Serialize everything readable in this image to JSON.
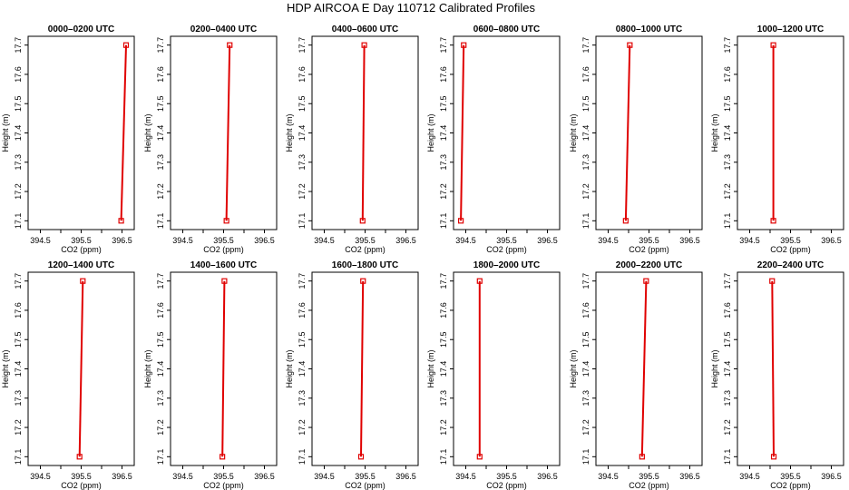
{
  "figure": {
    "title": "HDP AIRCOA E  Day 110712  Calibrated Profiles"
  },
  "colors": {
    "series": "#e00000",
    "axis": "#000000",
    "background": "#ffffff"
  },
  "chart_data": [
    {
      "type": "line",
      "title": "0000–0200 UTC",
      "xlabel": "CO2 (ppm)",
      "ylabel": "Height (m)",
      "xlim": [
        394.2,
        396.8
      ],
      "ylim": [
        17.07,
        17.73
      ],
      "xticks": [
        394.5,
        395.5,
        396.5
      ],
      "xtick_labels": [
        "394.5",
        "395.5",
        "396.5"
      ],
      "yticks": [
        17.1,
        17.2,
        17.3,
        17.4,
        17.5,
        17.6,
        17.7
      ],
      "ytick_labels": [
        "17.1",
        "17.2",
        "17.3",
        "17.4",
        "17.5",
        "17.6",
        "17.7"
      ],
      "series": [
        {
          "x": [
            396.48,
            396.6
          ],
          "y": [
            17.1,
            17.7
          ]
        }
      ]
    },
    {
      "type": "line",
      "title": "0200–0400 UTC",
      "xlabel": "CO2 (ppm)",
      "ylabel": "Height (m)",
      "xlim": [
        394.2,
        396.8
      ],
      "ylim": [
        17.07,
        17.73
      ],
      "xticks": [
        394.5,
        395.5,
        396.5
      ],
      "xtick_labels": [
        "394.5",
        "395.5",
        "396.5"
      ],
      "yticks": [
        17.1,
        17.2,
        17.3,
        17.4,
        17.5,
        17.6,
        17.7
      ],
      "ytick_labels": [
        "17.1",
        "17.2",
        "17.3",
        "17.4",
        "17.5",
        "17.6",
        "17.7"
      ],
      "series": [
        {
          "x": [
            395.57,
            395.65
          ],
          "y": [
            17.1,
            17.7
          ]
        }
      ]
    },
    {
      "type": "line",
      "title": "0400–0600 UTC",
      "xlabel": "CO2 (ppm)",
      "ylabel": "Height (m)",
      "xlim": [
        394.2,
        396.8
      ],
      "ylim": [
        17.07,
        17.73
      ],
      "xticks": [
        394.5,
        395.5,
        396.5
      ],
      "xtick_labels": [
        "394.5",
        "395.5",
        "396.5"
      ],
      "yticks": [
        17.1,
        17.2,
        17.3,
        17.4,
        17.5,
        17.6,
        17.7
      ],
      "ytick_labels": [
        "17.1",
        "17.2",
        "17.3",
        "17.4",
        "17.5",
        "17.6",
        "17.7"
      ],
      "series": [
        {
          "x": [
            395.44,
            395.48
          ],
          "y": [
            17.1,
            17.7
          ]
        }
      ]
    },
    {
      "type": "line",
      "title": "0600–0800 UTC",
      "xlabel": "CO2 (ppm)",
      "ylabel": "Height (m)",
      "xlim": [
        394.2,
        396.8
      ],
      "ylim": [
        17.07,
        17.73
      ],
      "xticks": [
        394.5,
        395.5,
        396.5
      ],
      "xtick_labels": [
        "394.5",
        "395.5",
        "396.5"
      ],
      "yticks": [
        17.1,
        17.2,
        17.3,
        17.4,
        17.5,
        17.6,
        17.7
      ],
      "ytick_labels": [
        "17.1",
        "17.2",
        "17.3",
        "17.4",
        "17.5",
        "17.6",
        "17.7"
      ],
      "series": [
        {
          "x": [
            394.38,
            394.45
          ],
          "y": [
            17.1,
            17.7
          ]
        }
      ]
    },
    {
      "type": "line",
      "title": "0800–1000 UTC",
      "xlabel": "CO2 (ppm)",
      "ylabel": "Height (m)",
      "xlim": [
        394.2,
        396.8
      ],
      "ylim": [
        17.07,
        17.73
      ],
      "xticks": [
        394.5,
        395.5,
        396.5
      ],
      "xtick_labels": [
        "394.5",
        "395.5",
        "396.5"
      ],
      "yticks": [
        17.1,
        17.2,
        17.3,
        17.4,
        17.5,
        17.6,
        17.7
      ],
      "ytick_labels": [
        "17.1",
        "17.2",
        "17.3",
        "17.4",
        "17.5",
        "17.6",
        "17.7"
      ],
      "series": [
        {
          "x": [
            394.93,
            395.03
          ],
          "y": [
            17.1,
            17.7
          ]
        }
      ]
    },
    {
      "type": "line",
      "title": "1000–1200 UTC",
      "xlabel": "CO2 (ppm)",
      "ylabel": "Height (m)",
      "xlim": [
        394.2,
        396.8
      ],
      "ylim": [
        17.07,
        17.73
      ],
      "xticks": [
        394.5,
        395.5,
        396.5
      ],
      "xtick_labels": [
        "394.5",
        "395.5",
        "396.5"
      ],
      "yticks": [
        17.1,
        17.2,
        17.3,
        17.4,
        17.5,
        17.6,
        17.7
      ],
      "ytick_labels": [
        "17.1",
        "17.2",
        "17.3",
        "17.4",
        "17.5",
        "17.6",
        "17.7"
      ],
      "series": [
        {
          "x": [
            395.08,
            395.08
          ],
          "y": [
            17.1,
            17.7
          ]
        }
      ]
    },
    {
      "type": "line",
      "title": "1200–1400 UTC",
      "xlabel": "CO2 (ppm)",
      "ylabel": "Height (m)",
      "xlim": [
        394.2,
        396.8
      ],
      "ylim": [
        17.07,
        17.73
      ],
      "xticks": [
        394.5,
        395.5,
        396.5
      ],
      "xtick_labels": [
        "394.5",
        "395.5",
        "396.5"
      ],
      "yticks": [
        17.1,
        17.2,
        17.3,
        17.4,
        17.5,
        17.6,
        17.7
      ],
      "ytick_labels": [
        "17.1",
        "17.2",
        "17.3",
        "17.4",
        "17.5",
        "17.6",
        "17.7"
      ],
      "series": [
        {
          "x": [
            395.46,
            395.54
          ],
          "y": [
            17.1,
            17.7
          ]
        }
      ]
    },
    {
      "type": "line",
      "title": "1400–1600 UTC",
      "xlabel": "CO2 (ppm)",
      "ylabel": "Height (m)",
      "xlim": [
        394.2,
        396.8
      ],
      "ylim": [
        17.07,
        17.73
      ],
      "xticks": [
        394.5,
        395.5,
        396.5
      ],
      "xtick_labels": [
        "394.5",
        "395.5",
        "396.5"
      ],
      "yticks": [
        17.1,
        17.2,
        17.3,
        17.4,
        17.5,
        17.6,
        17.7
      ],
      "ytick_labels": [
        "17.1",
        "17.2",
        "17.3",
        "17.4",
        "17.5",
        "17.6",
        "17.7"
      ],
      "series": [
        {
          "x": [
            395.47,
            395.52
          ],
          "y": [
            17.1,
            17.7
          ]
        }
      ]
    },
    {
      "type": "line",
      "title": "1600–1800 UTC",
      "xlabel": "CO2 (ppm)",
      "ylabel": "Height (m)",
      "xlim": [
        394.2,
        396.8
      ],
      "ylim": [
        17.07,
        17.73
      ],
      "xticks": [
        394.5,
        395.5,
        396.5
      ],
      "xtick_labels": [
        "394.5",
        "395.5",
        "396.5"
      ],
      "yticks": [
        17.1,
        17.2,
        17.3,
        17.4,
        17.5,
        17.6,
        17.7
      ],
      "ytick_labels": [
        "17.1",
        "17.2",
        "17.3",
        "17.4",
        "17.5",
        "17.6",
        "17.7"
      ],
      "series": [
        {
          "x": [
            395.4,
            395.45
          ],
          "y": [
            17.1,
            17.7
          ]
        }
      ]
    },
    {
      "type": "line",
      "title": "1800–2000 UTC",
      "xlabel": "CO2 (ppm)",
      "ylabel": "Height (m)",
      "xlim": [
        394.2,
        396.8
      ],
      "ylim": [
        17.07,
        17.73
      ],
      "xticks": [
        394.5,
        395.5,
        396.5
      ],
      "xtick_labels": [
        "394.5",
        "395.5",
        "396.5"
      ],
      "yticks": [
        17.1,
        17.2,
        17.3,
        17.4,
        17.5,
        17.6,
        17.7
      ],
      "ytick_labels": [
        "17.1",
        "17.2",
        "17.3",
        "17.4",
        "17.5",
        "17.6",
        "17.7"
      ],
      "series": [
        {
          "x": [
            394.84,
            394.84
          ],
          "y": [
            17.1,
            17.7
          ]
        }
      ]
    },
    {
      "type": "line",
      "title": "2000–2200 UTC",
      "xlabel": "CO2 (ppm)",
      "ylabel": "Height (m)",
      "xlim": [
        394.2,
        396.8
      ],
      "ylim": [
        17.07,
        17.73
      ],
      "xticks": [
        394.5,
        395.5,
        396.5
      ],
      "xtick_labels": [
        "394.5",
        "395.5",
        "396.5"
      ],
      "yticks": [
        17.1,
        17.2,
        17.3,
        17.4,
        17.5,
        17.6,
        17.7
      ],
      "ytick_labels": [
        "17.1",
        "17.2",
        "17.3",
        "17.4",
        "17.5",
        "17.6",
        "17.7"
      ],
      "series": [
        {
          "x": [
            395.33,
            395.43
          ],
          "y": [
            17.1,
            17.7
          ]
        }
      ]
    },
    {
      "type": "line",
      "title": "2200–2400 UTC",
      "xlabel": "CO2 (ppm)",
      "ylabel": "Height (m)",
      "xlim": [
        394.2,
        396.8
      ],
      "ylim": [
        17.07,
        17.73
      ],
      "xticks": [
        394.5,
        395.5,
        396.5
      ],
      "xtick_labels": [
        "394.5",
        "395.5",
        "396.5"
      ],
      "yticks": [
        17.1,
        17.2,
        17.3,
        17.4,
        17.5,
        17.6,
        17.7
      ],
      "ytick_labels": [
        "17.1",
        "17.2",
        "17.3",
        "17.4",
        "17.5",
        "17.6",
        "17.7"
      ],
      "series": [
        {
          "x": [
            395.09,
            395.05
          ],
          "y": [
            17.1,
            17.7
          ]
        }
      ]
    }
  ]
}
